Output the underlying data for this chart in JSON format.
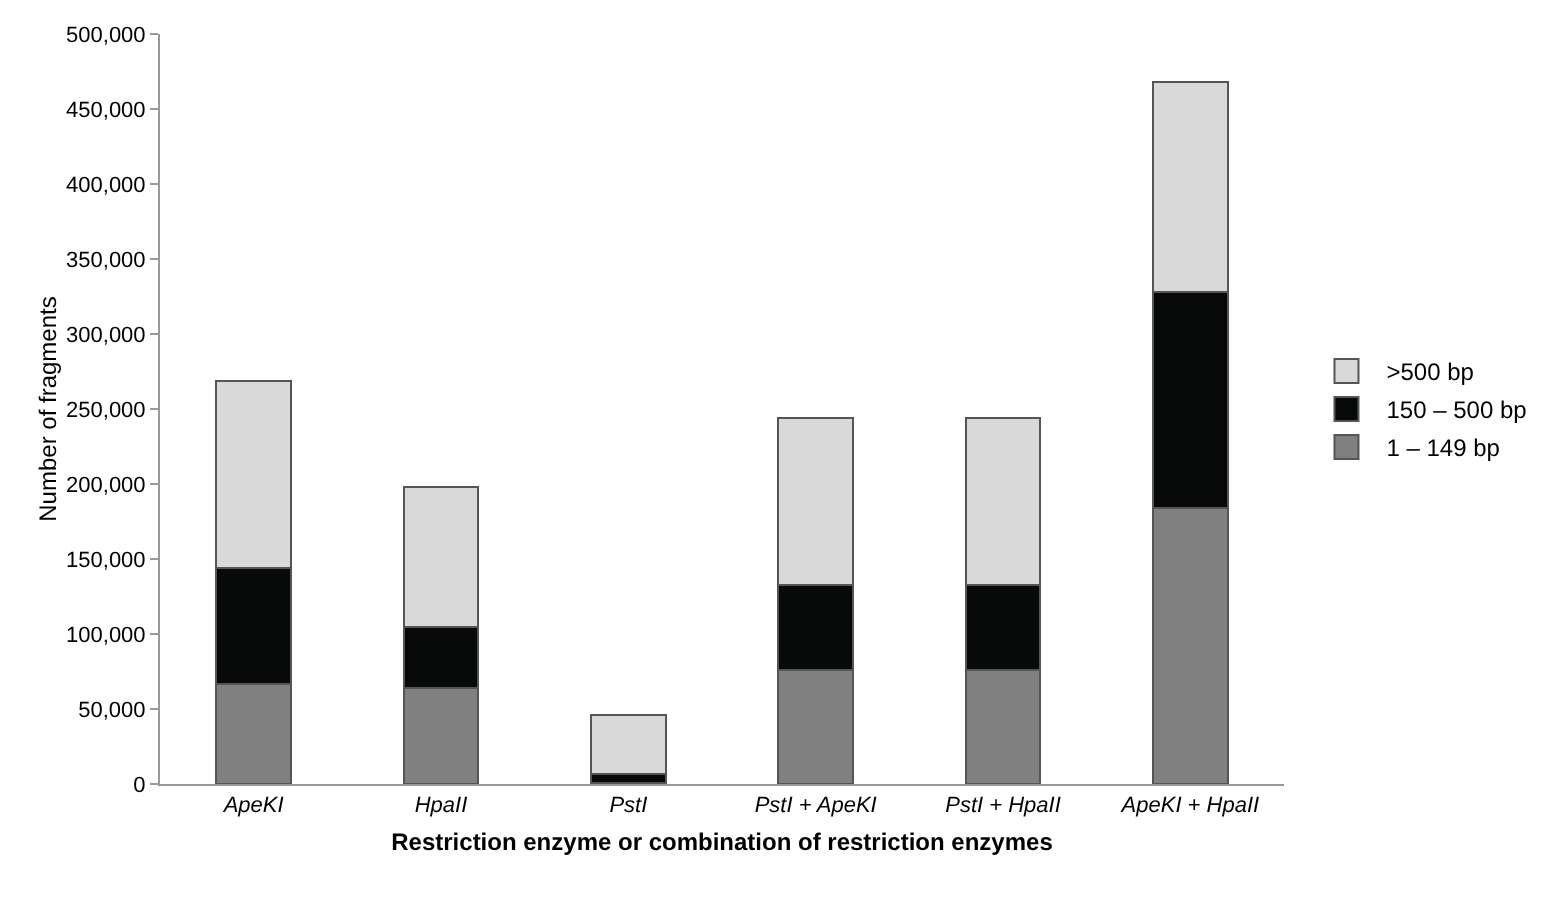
{
  "chart_data": {
    "type": "bar",
    "stacked": true,
    "xlabel": "Restriction enzyme or combination of restriction enzymes",
    "ylabel": "Number of fragments",
    "categories": [
      "ApeKI",
      "HpaII",
      "PstI",
      "PstI + ApeKI",
      "PstI + HpaII",
      "ApeKI + HpaII"
    ],
    "series": [
      {
        "name": "1 – 149 bp",
        "color": "#808080",
        "values": [
          67000,
          64000,
          1000,
          76000,
          76000,
          184000
        ]
      },
      {
        "name": "150 – 500 bp",
        "color": "#080a0a",
        "values": [
          77000,
          41000,
          6000,
          57000,
          57000,
          144000
        ]
      },
      {
        "name": ">500 bp",
        "color": "#d9d9d9",
        "values": [
          125000,
          93000,
          39000,
          111000,
          111000,
          140000
        ]
      }
    ],
    "ylim": [
      0,
      500000
    ],
    "yticks": [
      {
        "value": 0,
        "label": "0"
      },
      {
        "value": 50000,
        "label": "50,000"
      },
      {
        "value": 100000,
        "label": "100,000"
      },
      {
        "value": 150000,
        "label": "150,000"
      },
      {
        "value": 200000,
        "label": "200,000"
      },
      {
        "value": 250000,
        "label": "250,000"
      },
      {
        "value": 300000,
        "label": "300,000"
      },
      {
        "value": 350000,
        "label": "350,000"
      },
      {
        "value": 400000,
        "label": "400,000"
      },
      {
        "value": 450000,
        "label": "450,000"
      },
      {
        "value": 500000,
        "label": "500,000"
      }
    ],
    "grid": false,
    "legend": "right"
  }
}
